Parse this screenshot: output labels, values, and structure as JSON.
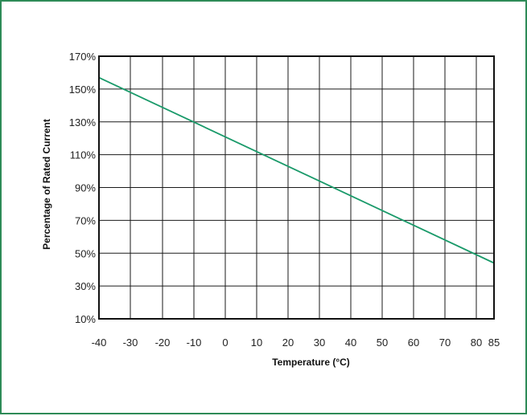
{
  "colors": {
    "frame_border": "#2e8b57",
    "series_line": "#1a9a6a",
    "grid": "#1a1a1a"
  },
  "chart_data": {
    "type": "line",
    "xlabel": "Temperature (°C)",
    "ylabel": "Percentage of Rated Current",
    "x_ticks": [
      -40,
      -30,
      -20,
      -10,
      0,
      10,
      20,
      30,
      40,
      50,
      60,
      70,
      80,
      85
    ],
    "x_tick_labels": [
      "-40",
      "-30",
      "-20",
      "-10",
      "0",
      "10",
      "20",
      "30",
      "40",
      "50",
      "60",
      "70",
      "80",
      "85"
    ],
    "y_ticks": [
      10,
      30,
      50,
      70,
      90,
      110,
      130,
      150,
      170
    ],
    "y_tick_labels": [
      "10%",
      "30%",
      "50%",
      "70%",
      "90%",
      "110%",
      "130%",
      "150%",
      "170%"
    ],
    "xlim": [
      -40,
      85
    ],
    "ylim": [
      10,
      170
    ],
    "grid": true,
    "series": [
      {
        "x": [
          -40,
          85
        ],
        "y": [
          157,
          44
        ]
      }
    ]
  }
}
